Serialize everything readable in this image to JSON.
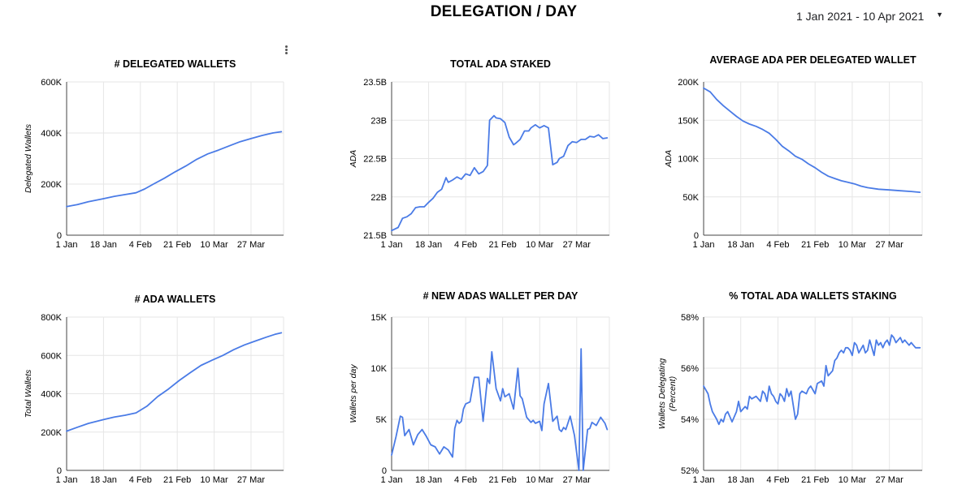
{
  "header": {
    "title": "DELEGATION / DAY",
    "date_range": "1 Jan 2021 - 10 Apr 2021",
    "dropdown_icon": "caret-down-icon",
    "menu_icon": "more-vert-icon"
  },
  "colors": {
    "line": "#4a7be6",
    "grid": "#e6e6e6",
    "axis": "#444444"
  },
  "chart_data": [
    {
      "type": "line",
      "title": "# DELEGATED WALLETS",
      "xlabel": "",
      "ylabel": "Delegated Wallets",
      "x_ticks": [
        "1 Jan",
        "18 Jan",
        "4 Feb",
        "21 Feb",
        "10 Mar",
        "27 Mar"
      ],
      "xlim": [
        0,
        100
      ],
      "y_ticks": [
        "0",
        "200K",
        "400K",
        "600K"
      ],
      "ylim": [
        0,
        600000
      ],
      "grid": true,
      "series": [
        {
          "x": [
            0,
            5,
            10,
            17,
            22,
            27,
            32,
            36,
            40,
            45,
            50,
            55,
            60,
            65,
            70,
            75,
            80,
            85,
            90,
            95,
            99
          ],
          "values": [
            112000,
            120000,
            131000,
            143000,
            152000,
            159000,
            166000,
            181000,
            200000,
            223000,
            248000,
            271000,
            297000,
            318000,
            333000,
            350000,
            366000,
            378000,
            390000,
            400000,
            405000
          ]
        }
      ]
    },
    {
      "type": "line",
      "title": "TOTAL ADA STAKED",
      "xlabel": "",
      "ylabel": "ADA",
      "x_ticks": [
        "1 Jan",
        "18 Jan",
        "4 Feb",
        "21 Feb",
        "10 Mar",
        "27 Mar"
      ],
      "xlim": [
        0,
        100
      ],
      "y_ticks": [
        "21.5B",
        "22B",
        "22.5B",
        "23B",
        "23.5B"
      ],
      "ylim": [
        21.5,
        23.5
      ],
      "grid": true,
      "series": [
        {
          "x": [
            0,
            3,
            5,
            7,
            9,
            11,
            13,
            15,
            17,
            19,
            21,
            23,
            25,
            26,
            28,
            30,
            32,
            34,
            36,
            38,
            40,
            42,
            44,
            45,
            47,
            48,
            50,
            52,
            54,
            56,
            57,
            59,
            61,
            63,
            64,
            66,
            68,
            70,
            72,
            74,
            76,
            77,
            79,
            81,
            83,
            85,
            87,
            89,
            91,
            93,
            95,
            97,
            99
          ],
          "values": [
            21.56,
            21.6,
            21.72,
            21.74,
            21.78,
            21.86,
            21.87,
            21.87,
            21.93,
            21.98,
            22.06,
            22.1,
            22.25,
            22.19,
            22.22,
            22.26,
            22.23,
            22.3,
            22.28,
            22.38,
            22.3,
            22.33,
            22.41,
            23.0,
            23.06,
            23.03,
            23.02,
            22.97,
            22.78,
            22.68,
            22.7,
            22.75,
            22.86,
            22.86,
            22.9,
            22.94,
            22.9,
            22.93,
            22.9,
            22.42,
            22.45,
            22.5,
            22.53,
            22.67,
            22.72,
            22.71,
            22.75,
            22.75,
            22.79,
            22.78,
            22.81,
            22.76,
            22.77
          ]
        }
      ]
    },
    {
      "type": "line",
      "title": "AVERAGE ADA PER DELEGATED WALLET",
      "xlabel": "",
      "ylabel": "ADA",
      "x_ticks": [
        "1 Jan",
        "18 Jan",
        "4 Feb",
        "21 Feb",
        "10 Mar",
        "27 Mar"
      ],
      "xlim": [
        0,
        100
      ],
      "y_ticks": [
        "0",
        "50K",
        "100K",
        "150K",
        "200K"
      ],
      "ylim": [
        0,
        200000
      ],
      "grid": true,
      "series": [
        {
          "x": [
            0,
            3,
            6,
            9,
            12,
            15,
            18,
            21,
            24,
            27,
            30,
            33,
            36,
            39,
            42,
            45,
            48,
            51,
            54,
            57,
            60,
            63,
            66,
            69,
            72,
            75,
            80,
            85,
            90,
            95,
            99
          ],
          "values": [
            192000,
            187000,
            177000,
            169000,
            162000,
            155000,
            149000,
            145000,
            142000,
            138000,
            133000,
            125000,
            116000,
            110000,
            103000,
            99000,
            93000,
            88000,
            82000,
            77000,
            74000,
            71000,
            69000,
            67000,
            64000,
            62000,
            60000,
            59000,
            58000,
            57000,
            56000
          ]
        }
      ]
    },
    {
      "type": "line",
      "title": "# ADA WALLETS",
      "xlabel": "",
      "ylabel": "Total Wallets",
      "x_ticks": [
        "1 Jan",
        "18 Jan",
        "4 Feb",
        "21 Feb",
        "10 Mar",
        "27 Mar"
      ],
      "xlim": [
        0,
        100
      ],
      "y_ticks": [
        "0",
        "200K",
        "400K",
        "600K",
        "800K"
      ],
      "ylim": [
        0,
        800000
      ],
      "grid": true,
      "series": [
        {
          "x": [
            0,
            5,
            10,
            17,
            22,
            27,
            32,
            37,
            42,
            47,
            52,
            57,
            62,
            67,
            72,
            77,
            82,
            87,
            92,
            96,
            99
          ],
          "values": [
            205000,
            225000,
            245000,
            265000,
            278000,
            288000,
            300000,
            335000,
            385000,
            425000,
            470000,
            510000,
            548000,
            575000,
            600000,
            630000,
            655000,
            675000,
            695000,
            710000,
            718000
          ]
        }
      ]
    },
    {
      "type": "line",
      "title": "# NEW ADAS WALLET PER DAY",
      "xlabel": "",
      "ylabel": "Wallets per day",
      "x_ticks": [
        "1 Jan",
        "18 Jan",
        "4 Feb",
        "21 Feb",
        "10 Mar",
        "27 Mar"
      ],
      "xlim": [
        0,
        100
      ],
      "y_ticks": [
        "0",
        "5K",
        "10K",
        "15K"
      ],
      "ylim": [
        0,
        15000
      ],
      "grid": true,
      "series": [
        {
          "x": [
            0,
            2,
            4,
            5,
            6,
            8,
            10,
            12,
            14,
            16,
            18,
            20,
            22,
            24,
            26,
            28,
            29,
            30,
            31,
            32,
            33,
            34,
            36,
            38,
            40,
            42,
            44,
            45,
            46,
            48,
            50,
            51,
            52,
            54,
            56,
            58,
            59,
            60,
            62,
            64,
            65,
            66,
            68,
            69,
            70,
            72,
            74,
            76,
            77,
            78,
            79,
            80,
            82,
            84,
            86,
            87,
            88,
            90,
            91,
            92,
            94,
            96,
            98,
            99
          ],
          "values": [
            1500,
            3300,
            5300,
            5200,
            3400,
            4000,
            2500,
            3500,
            4000,
            3300,
            2500,
            2300,
            1600,
            2300,
            2000,
            1300,
            4100,
            4900,
            4600,
            4800,
            6000,
            6500,
            6700,
            9100,
            9100,
            4800,
            9000,
            8500,
            11600,
            8000,
            6800,
            8000,
            7200,
            7500,
            6000,
            10000,
            7300,
            7000,
            5200,
            4700,
            4900,
            4600,
            4800,
            3900,
            6500,
            8500,
            4800,
            5300,
            4000,
            3800,
            4200,
            4000,
            5300,
            3400,
            0,
            11900,
            0,
            4000,
            4100,
            4700,
            4400,
            5200,
            4600,
            4000
          ]
        }
      ]
    },
    {
      "type": "line",
      "title": "% TOTAL ADA WALLETS STAKING",
      "xlabel": "",
      "ylabel": "Wallets Delegating (Percent)",
      "x_ticks": [
        "1 Jan",
        "18 Jan",
        "4 Feb",
        "21 Feb",
        "10 Mar",
        "27 Mar"
      ],
      "xlim": [
        0,
        100
      ],
      "y_ticks": [
        "52%",
        "54%",
        "56%",
        "58%"
      ],
      "ylim": [
        52,
        58
      ],
      "grid": true,
      "series": [
        {
          "x": [
            0,
            2,
            3,
            4,
            6,
            7,
            8,
            9,
            10,
            11,
            12,
            13,
            15,
            16,
            17,
            18,
            19,
            20,
            21,
            22,
            24,
            25,
            26,
            27,
            28,
            29,
            30,
            31,
            32,
            33,
            34,
            35,
            36,
            37,
            38,
            39,
            40,
            42,
            43,
            44,
            45,
            47,
            48,
            49,
            51,
            52,
            54,
            55,
            56,
            57,
            59,
            60,
            61,
            62,
            63,
            64,
            65,
            66,
            67,
            68,
            69,
            70,
            71,
            73,
            74,
            75,
            76,
            77,
            78,
            79,
            80,
            81,
            82,
            83,
            84,
            85,
            86,
            87,
            88,
            89,
            90,
            91,
            92,
            94,
            95,
            96,
            97,
            98,
            99
          ],
          "values": [
            55.3,
            55.0,
            54.6,
            54.3,
            54.0,
            53.8,
            54.0,
            53.9,
            54.2,
            54.3,
            54.1,
            53.9,
            54.3,
            54.7,
            54.3,
            54.4,
            54.5,
            54.4,
            54.9,
            54.8,
            54.9,
            54.8,
            54.7,
            55.1,
            55.0,
            54.7,
            55.3,
            55.0,
            54.9,
            54.7,
            54.6,
            55.0,
            54.9,
            54.7,
            55.2,
            54.9,
            55.1,
            54.0,
            54.2,
            55.0,
            55.1,
            55.0,
            55.2,
            55.3,
            55.0,
            55.4,
            55.5,
            55.3,
            56.1,
            55.7,
            55.9,
            56.3,
            56.4,
            56.6,
            56.7,
            56.6,
            56.8,
            56.8,
            56.7,
            56.5,
            57.0,
            56.9,
            56.6,
            56.9,
            56.6,
            56.7,
            57.1,
            56.8,
            56.5,
            57.1,
            56.9,
            57.0,
            56.8,
            57.0,
            57.1,
            56.9,
            57.3,
            57.2,
            57.0,
            57.1,
            57.2,
            57.0,
            57.1,
            56.9,
            57.0,
            56.9,
            56.8,
            56.8,
            56.8
          ]
        }
      ]
    }
  ]
}
